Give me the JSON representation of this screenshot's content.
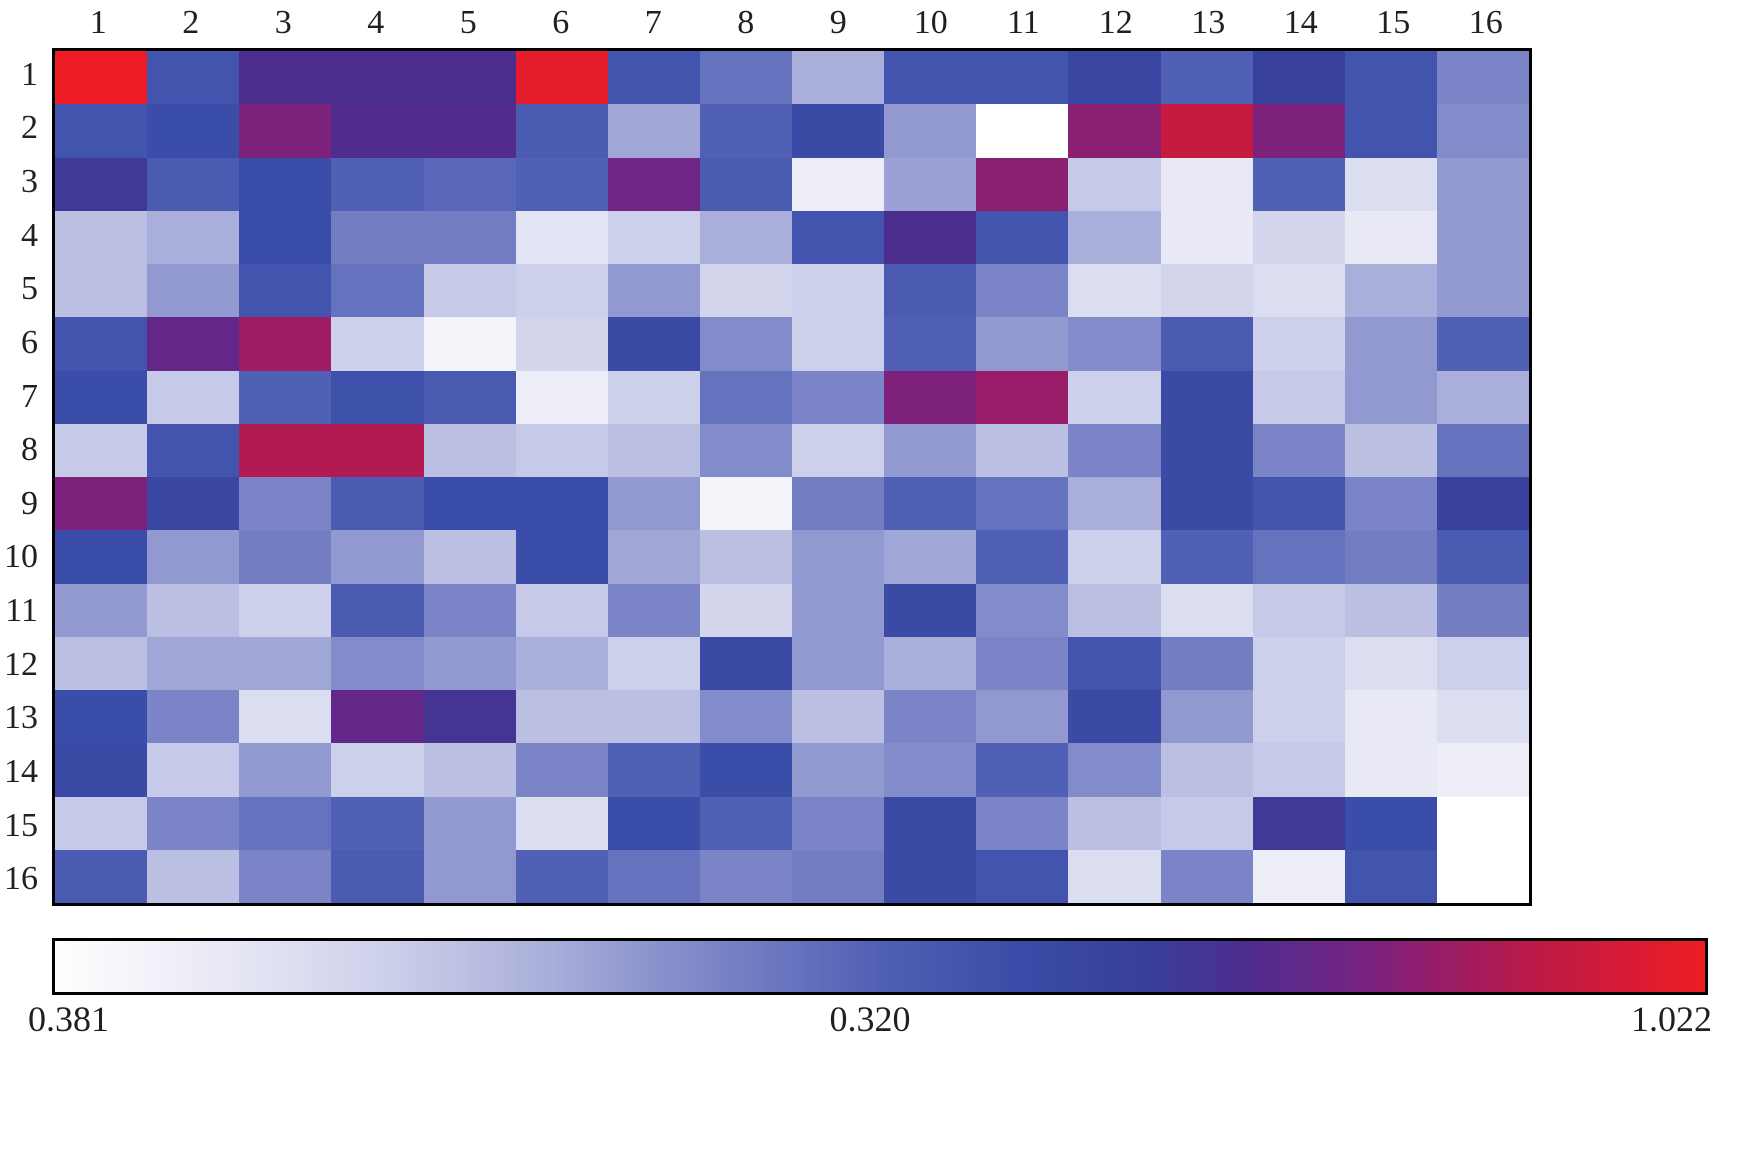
{
  "chart_data": {
    "type": "heatmap",
    "title": "",
    "xlabel": "",
    "ylabel": "",
    "columns": [
      "1",
      "2",
      "3",
      "4",
      "5",
      "6",
      "7",
      "8",
      "9",
      "10",
      "11",
      "12",
      "13",
      "14",
      "15",
      "16"
    ],
    "rows": [
      "1",
      "2",
      "3",
      "4",
      "5",
      "6",
      "7",
      "8",
      "9",
      "10",
      "11",
      "12",
      "13",
      "14",
      "15",
      "16"
    ],
    "values_normalized": [
      [
        1.0,
        0.55,
        0.72,
        0.72,
        0.72,
        0.98,
        0.55,
        0.45,
        0.3,
        0.55,
        0.55,
        0.62,
        0.5,
        0.65,
        0.55,
        0.4
      ],
      [
        0.55,
        0.58,
        0.8,
        0.73,
        0.73,
        0.52,
        0.32,
        0.5,
        0.6,
        0.35,
        0.0,
        0.82,
        0.92,
        0.8,
        0.55,
        0.38
      ],
      [
        0.68,
        0.52,
        0.58,
        0.5,
        0.48,
        0.5,
        0.78,
        0.52,
        0.08,
        0.33,
        0.82,
        0.22,
        0.1,
        0.5,
        0.15,
        0.35
      ],
      [
        0.25,
        0.3,
        0.58,
        0.42,
        0.42,
        0.12,
        0.2,
        0.3,
        0.55,
        0.72,
        0.55,
        0.3,
        0.1,
        0.18,
        0.1,
        0.35
      ],
      [
        0.25,
        0.35,
        0.55,
        0.45,
        0.22,
        0.2,
        0.35,
        0.18,
        0.2,
        0.52,
        0.4,
        0.15,
        0.18,
        0.15,
        0.3,
        0.35
      ],
      [
        0.55,
        0.76,
        0.85,
        0.2,
        0.05,
        0.18,
        0.6,
        0.38,
        0.2,
        0.5,
        0.35,
        0.38,
        0.52,
        0.2,
        0.35,
        0.5
      ],
      [
        0.58,
        0.22,
        0.5,
        0.56,
        0.52,
        0.08,
        0.2,
        0.45,
        0.4,
        0.8,
        0.84,
        0.2,
        0.6,
        0.22,
        0.35,
        0.3
      ],
      [
        0.22,
        0.55,
        0.88,
        0.88,
        0.25,
        0.22,
        0.25,
        0.38,
        0.2,
        0.35,
        0.25,
        0.4,
        0.6,
        0.4,
        0.25,
        0.45
      ],
      [
        0.8,
        0.62,
        0.4,
        0.52,
        0.58,
        0.58,
        0.35,
        0.05,
        0.42,
        0.5,
        0.45,
        0.3,
        0.6,
        0.55,
        0.4,
        0.65
      ],
      [
        0.58,
        0.35,
        0.42,
        0.35,
        0.25,
        0.58,
        0.32,
        0.25,
        0.35,
        0.32,
        0.5,
        0.2,
        0.5,
        0.45,
        0.42,
        0.52
      ],
      [
        0.35,
        0.25,
        0.2,
        0.52,
        0.4,
        0.22,
        0.4,
        0.18,
        0.35,
        0.6,
        0.38,
        0.25,
        0.15,
        0.22,
        0.25,
        0.42
      ],
      [
        0.25,
        0.32,
        0.32,
        0.38,
        0.35,
        0.3,
        0.2,
        0.6,
        0.35,
        0.3,
        0.4,
        0.55,
        0.42,
        0.2,
        0.15,
        0.2
      ],
      [
        0.58,
        0.4,
        0.15,
        0.76,
        0.7,
        0.25,
        0.25,
        0.38,
        0.25,
        0.4,
        0.35,
        0.6,
        0.35,
        0.2,
        0.1,
        0.15
      ],
      [
        0.6,
        0.22,
        0.35,
        0.2,
        0.25,
        0.4,
        0.5,
        0.58,
        0.35,
        0.38,
        0.5,
        0.38,
        0.25,
        0.22,
        0.1,
        0.08
      ],
      [
        0.22,
        0.4,
        0.45,
        0.5,
        0.35,
        0.15,
        0.58,
        0.5,
        0.4,
        0.6,
        0.4,
        0.25,
        0.22,
        0.68,
        0.58,
        0.0
      ],
      [
        0.52,
        0.25,
        0.4,
        0.52,
        0.35,
        0.5,
        0.45,
        0.4,
        0.42,
        0.6,
        0.55,
        0.15,
        0.4,
        0.08,
        0.55,
        0.0
      ]
    ],
    "colorbar": {
      "tick_labels": [
        "0.381",
        "0.320",
        "1.022"
      ],
      "gradient_stops": [
        {
          "t": 0.0,
          "color": "#ffffff"
        },
        {
          "t": 0.1,
          "color": "#e9e9f6"
        },
        {
          "t": 0.2,
          "color": "#cdd0ea"
        },
        {
          "t": 0.3,
          "color": "#a9aeda"
        },
        {
          "t": 0.4,
          "color": "#7a84c6"
        },
        {
          "t": 0.5,
          "color": "#5060b4"
        },
        {
          "t": 0.58,
          "color": "#3a4da8"
        },
        {
          "t": 0.66,
          "color": "#383f9b"
        },
        {
          "t": 0.72,
          "color": "#4c2e8e"
        },
        {
          "t": 0.78,
          "color": "#6f2486"
        },
        {
          "t": 0.84,
          "color": "#981c68"
        },
        {
          "t": 0.9,
          "color": "#be1a46"
        },
        {
          "t": 1.0,
          "color": "#ed1c24"
        }
      ],
      "legend_position": "bottom"
    },
    "grid_lines": false,
    "axis_label_color": "#231f20"
  }
}
